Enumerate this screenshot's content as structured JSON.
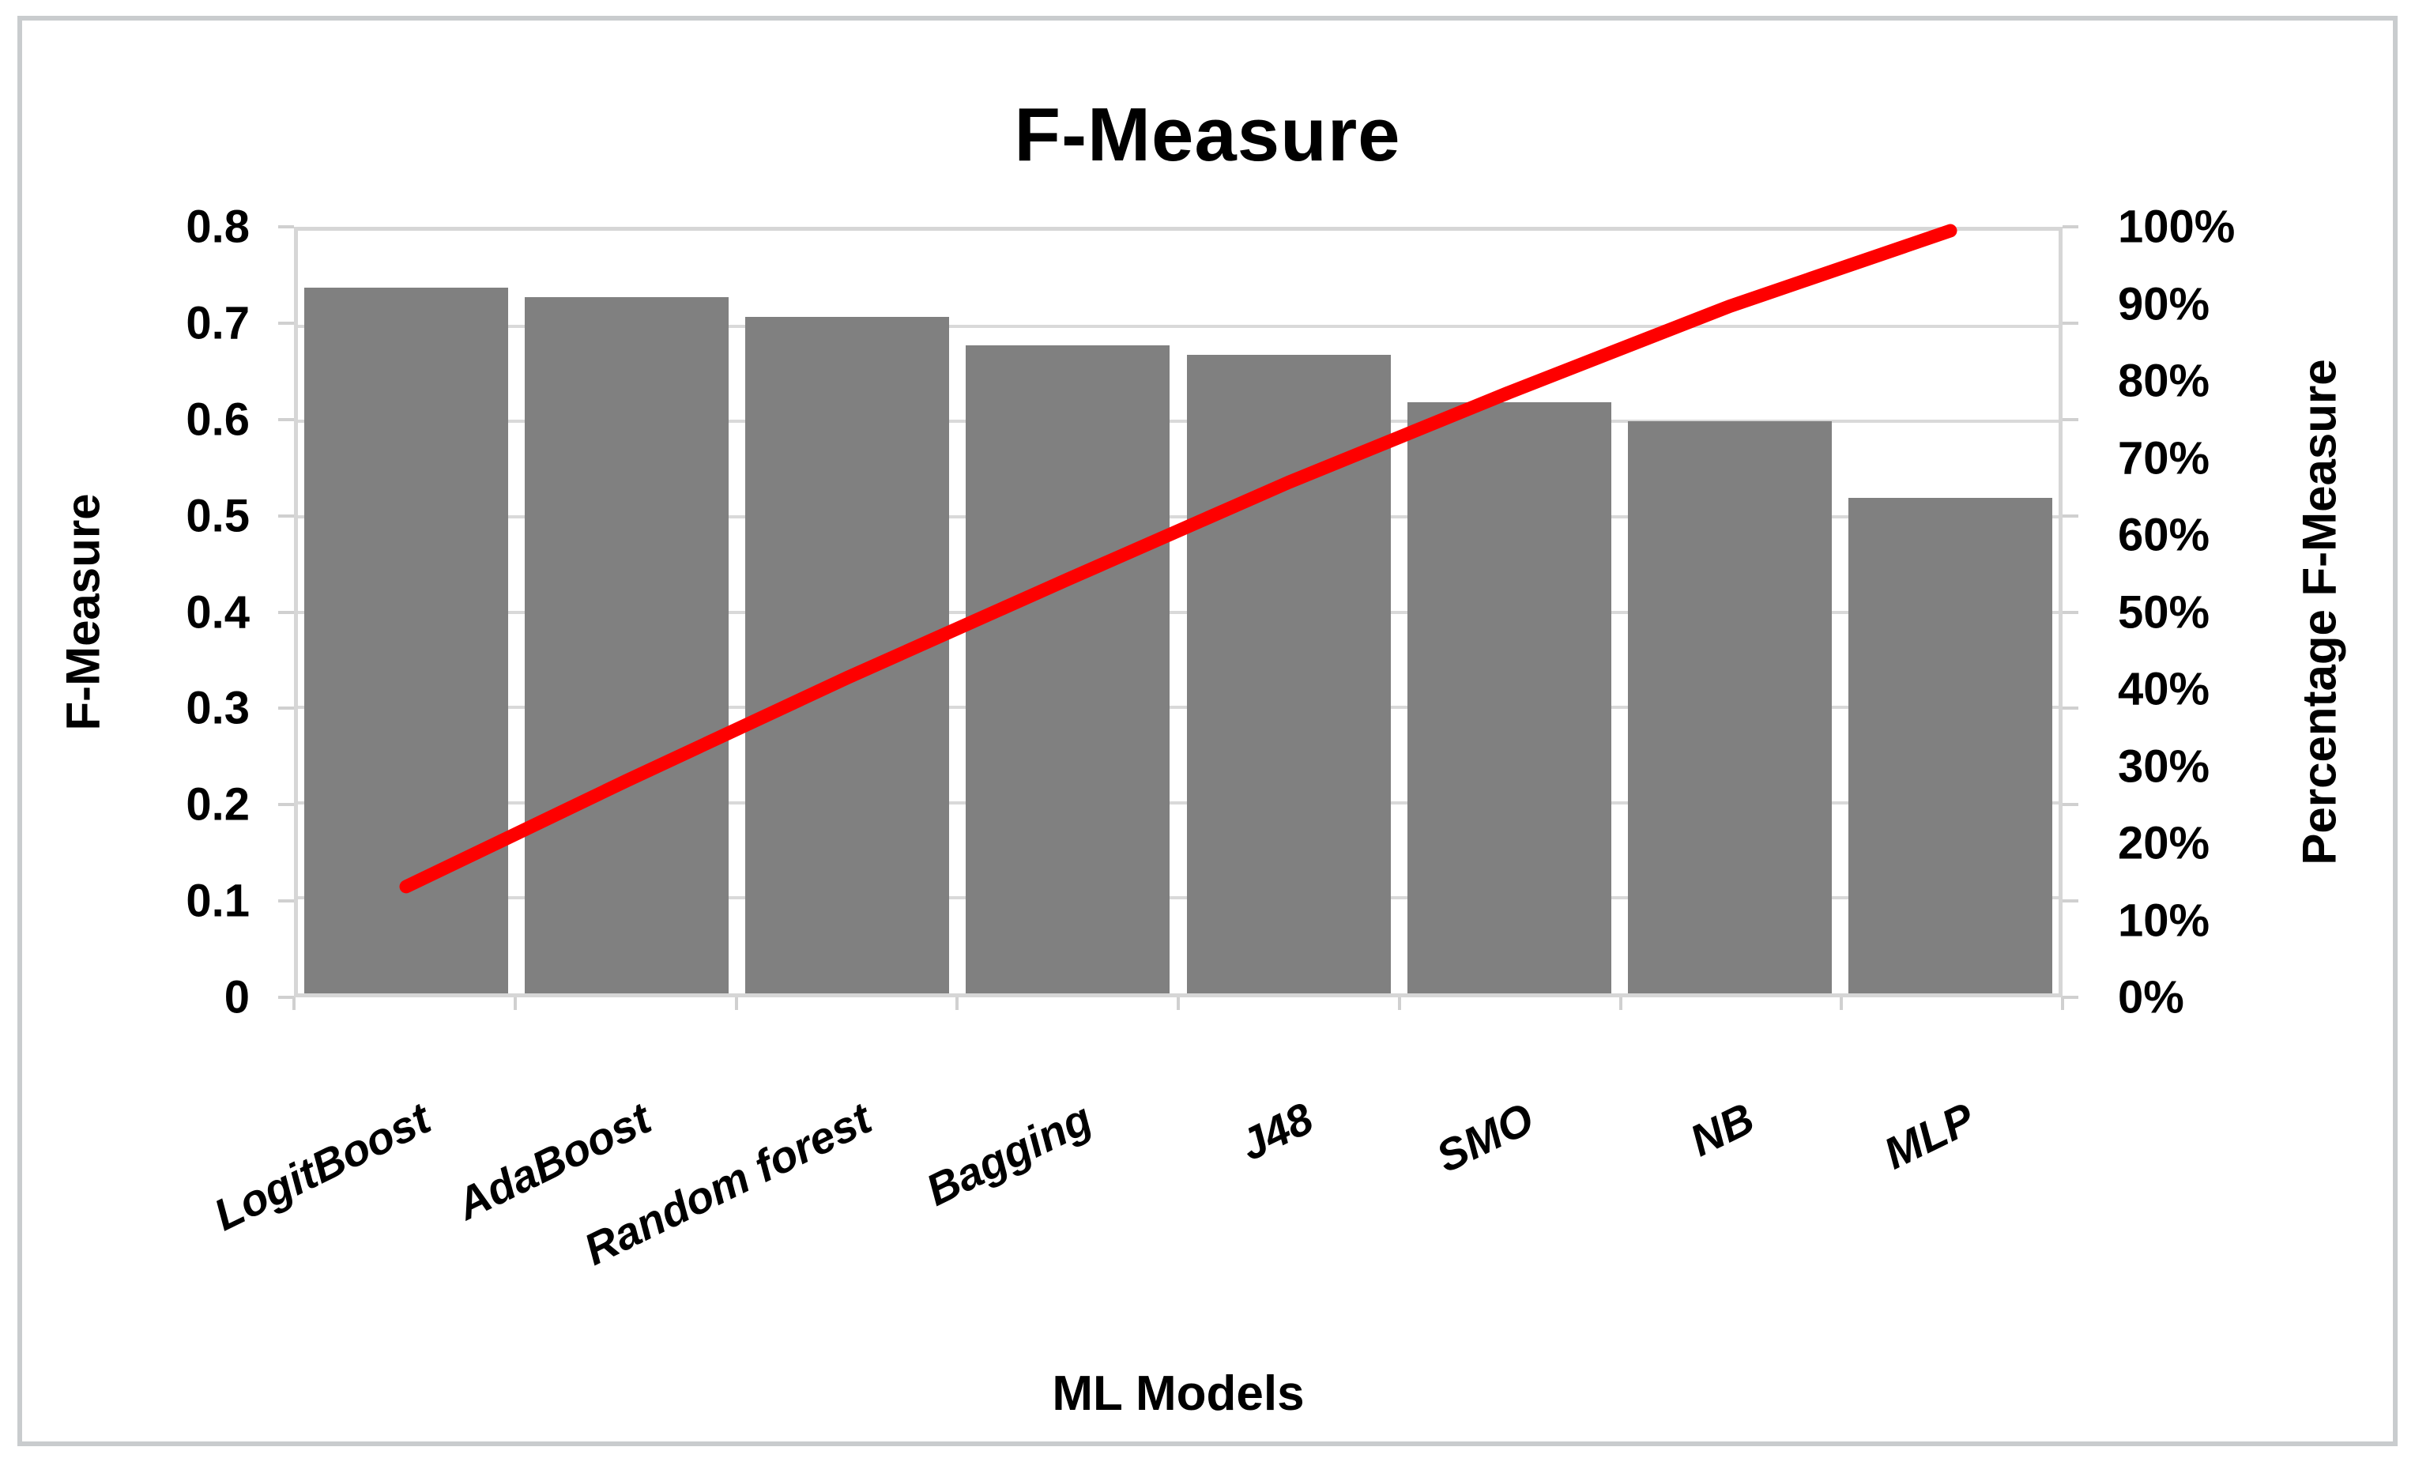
{
  "title": "F-Measure",
  "x_axis_title": "ML Models",
  "left_axis": {
    "label": "F-Measure",
    "min": 0,
    "max": 0.8,
    "tick_labels": [
      "0.8",
      "0.7",
      "0.6",
      "0.5",
      "0.4",
      "0.3",
      "0.2",
      "0.1",
      "0"
    ]
  },
  "right_axis": {
    "label": "Percentage F-Measure",
    "min_pct": 0,
    "max_pct": 100,
    "tick_labels": [
      "100%",
      "90%",
      "80%",
      "70%",
      "60%",
      "50%",
      "40%",
      "30%",
      "20%",
      "10%",
      "0%"
    ]
  },
  "colors": {
    "bar": "#808080",
    "line": "#fe0000",
    "gridline": "#d9d9d9",
    "plot_border": "#d6d6d6",
    "frame_border": "#c9ccce",
    "text": "#000000"
  },
  "chart_data": {
    "type": "bar",
    "subtype": "pareto (bars + cumulative percentage line)",
    "title": "F-Measure",
    "xlabel": "ML Models",
    "ylabel_left": "F-Measure",
    "ylabel_right": "Percentage F-Measure",
    "categories": [
      "LogitBoost",
      "AdaBoost",
      "Random forest",
      "Bagging",
      "J48",
      "SMO",
      "NB",
      "MLP"
    ],
    "series": [
      {
        "name": "F-Measure",
        "type": "bar",
        "axis": "left",
        "values": [
          0.74,
          0.73,
          0.71,
          0.68,
          0.67,
          0.62,
          0.6,
          0.52
        ]
      },
      {
        "name": "Percentage F-Measure",
        "type": "line",
        "axis": "right",
        "values_pct": [
          14.0,
          27.9,
          41.4,
          54.3,
          67.0,
          78.8,
          90.1,
          100.0
        ]
      }
    ],
    "ylim_left": [
      0,
      0.8
    ],
    "ylim_right_pct": [
      0,
      100
    ],
    "grid": true,
    "legend": false
  }
}
